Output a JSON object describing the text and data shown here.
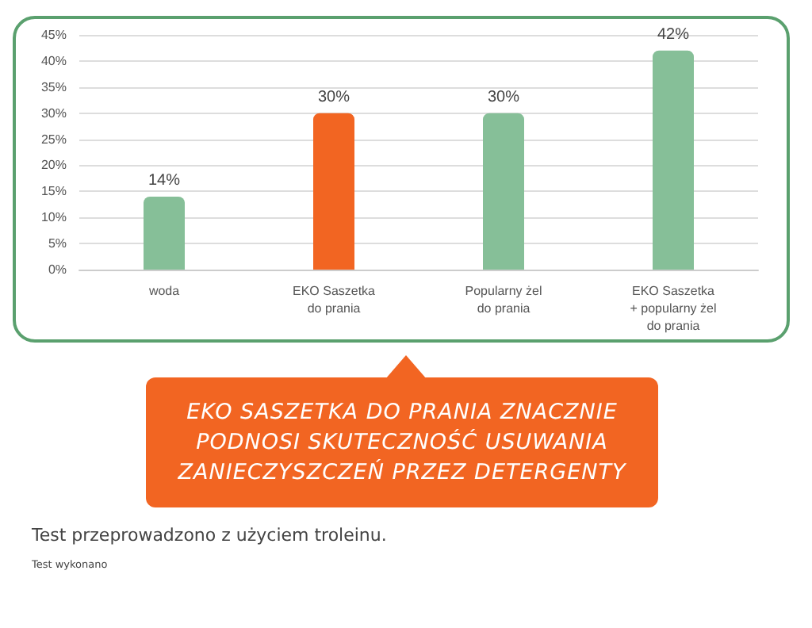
{
  "chart_data": {
    "type": "bar",
    "categories": [
      "woda",
      "EKO Saszetka\ndo prania",
      "Popularny żel\ndo prania",
      "EKO Saszetka\n+ popularny żel\ndo prania"
    ],
    "values": [
      14,
      30,
      30,
      42
    ],
    "value_labels": [
      "14%",
      "30%",
      "30%",
      "42%"
    ],
    "colors": [
      "#86bf98",
      "#f26522",
      "#86bf98",
      "#86bf98"
    ],
    "ylim": [
      0,
      45
    ],
    "yticks": [
      {
        "value": 0,
        "label": "0%"
      },
      {
        "value": 5,
        "label": "5%"
      },
      {
        "value": 10,
        "label": "10%"
      },
      {
        "value": 15,
        "label": "15%"
      },
      {
        "value": 20,
        "label": "20%"
      },
      {
        "value": 25,
        "label": "25%"
      },
      {
        "value": 30,
        "label": "30%"
      },
      {
        "value": 35,
        "label": "35%"
      },
      {
        "value": 40,
        "label": "40%"
      },
      {
        "value": 45,
        "label": "45%"
      }
    ],
    "grid": "y",
    "annotations": [
      "EKO SASZETKA DO PRANIA ZNACZNIE\nPODNOSI SKUTECZNOŚĆ USUWANIA\nZANIECZYSZCZEŃ PRZEZ DETERGENTY",
      "Test przeprowadzono z użyciem troleinu.",
      "Test wykonano"
    ]
  }
}
